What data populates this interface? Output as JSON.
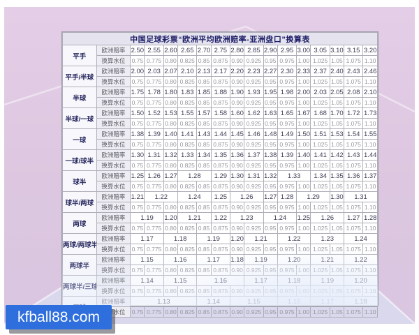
{
  "chart_data": {
    "type": "table",
    "title": "中国足球彩票“欧洲平均欧洲赔率-亚洲盘口”换算表",
    "row_label_odds": "欧洲赔率",
    "row_label_water": "换算水位",
    "water_values": [
      "0.75",
      "0.775",
      "0.80",
      "0.825",
      "0.85",
      "0.875",
      "0.90",
      "0.925",
      "0.95",
      "0.975",
      "1.00",
      "1.025",
      "1.05",
      "1.075",
      "1.10"
    ],
    "groups": [
      {
        "handicap": "平手",
        "odds": [
          [
            "2.50",
            1
          ],
          [
            "2.55",
            1
          ],
          [
            "2.60",
            1
          ],
          [
            "2.65",
            1
          ],
          [
            "2.70",
            1
          ],
          [
            "2.75",
            1
          ],
          [
            "2.80",
            1
          ],
          [
            "2.85",
            1
          ],
          [
            "2.90",
            1
          ],
          [
            "2.95",
            1
          ],
          [
            "3.00",
            1
          ],
          [
            "3.05",
            1
          ],
          [
            "3.10",
            1
          ],
          [
            "3.15",
            1
          ],
          [
            "3.20",
            1
          ]
        ]
      },
      {
        "handicap": "平手/半球",
        "odds": [
          [
            "2.00",
            1
          ],
          [
            "2.03",
            1
          ],
          [
            "2.07",
            1
          ],
          [
            "2.10",
            1
          ],
          [
            "2.13",
            1
          ],
          [
            "2.17",
            1
          ],
          [
            "2.20",
            1
          ],
          [
            "2.23",
            1
          ],
          [
            "2.27",
            1
          ],
          [
            "2.30",
            1
          ],
          [
            "2.33",
            1
          ],
          [
            "2.37",
            1
          ],
          [
            "2.40",
            1
          ],
          [
            "2.43",
            1
          ],
          [
            "2.46",
            1
          ]
        ]
      },
      {
        "handicap": "半球",
        "odds": [
          [
            "1.75",
            1
          ],
          [
            "1.78",
            1
          ],
          [
            "1.80",
            1
          ],
          [
            "1.83",
            1
          ],
          [
            "1.85",
            1
          ],
          [
            "1.88",
            1
          ],
          [
            "1.90",
            1
          ],
          [
            "1.93",
            1
          ],
          [
            "1.95",
            1
          ],
          [
            "1.98",
            1
          ],
          [
            "2.00",
            1
          ],
          [
            "2.03",
            1
          ],
          [
            "2.05",
            1
          ],
          [
            "2.08",
            1
          ],
          [
            "2.10",
            1
          ]
        ]
      },
      {
        "handicap": "半球/一球",
        "odds": [
          [
            "1.50",
            1
          ],
          [
            "1.52",
            1
          ],
          [
            "1.53",
            1
          ],
          [
            "1.55",
            1
          ],
          [
            "1.57",
            1
          ],
          [
            "1.58",
            1
          ],
          [
            "1.60",
            1
          ],
          [
            "1.62",
            1
          ],
          [
            "1.63",
            1
          ],
          [
            "1.65",
            1
          ],
          [
            "1.67",
            1
          ],
          [
            "1.68",
            1
          ],
          [
            "1.70",
            1
          ],
          [
            "1.72",
            1
          ],
          [
            "1.73",
            1
          ]
        ]
      },
      {
        "handicap": "一球",
        "odds": [
          [
            "1.38",
            1
          ],
          [
            "1.39",
            1
          ],
          [
            "1.40",
            1
          ],
          [
            "1.41",
            1
          ],
          [
            "1.43",
            1
          ],
          [
            "1.44",
            1
          ],
          [
            "1.45",
            1
          ],
          [
            "1.46",
            1
          ],
          [
            "1.48",
            1
          ],
          [
            "1.49",
            1
          ],
          [
            "1.50",
            1
          ],
          [
            "1.51",
            1
          ],
          [
            "1.53",
            1
          ],
          [
            "1.54",
            1
          ],
          [
            "1.55",
            1
          ]
        ]
      },
      {
        "handicap": "一球/球半",
        "odds": [
          [
            "1.30",
            1
          ],
          [
            "1.31",
            1
          ],
          [
            "1.32",
            1
          ],
          [
            "1.33",
            1
          ],
          [
            "1.34",
            1
          ],
          [
            "1.35",
            1
          ],
          [
            "1.36",
            1
          ],
          [
            "1.37",
            1
          ],
          [
            "1.38",
            1
          ],
          [
            "1.39",
            1
          ],
          [
            "1.40",
            1
          ],
          [
            "1.41",
            1
          ],
          [
            "1.42",
            1
          ],
          [
            "1.43",
            1
          ],
          [
            "1.44",
            1
          ]
        ]
      },
      {
        "handicap": "球半",
        "odds": [
          [
            "1.25",
            1
          ],
          [
            "1.26",
            1
          ],
          [
            "1.27",
            1
          ],
          [
            "1.28",
            2
          ],
          [
            "1.29",
            1
          ],
          [
            "1.30",
            1
          ],
          [
            "1.31",
            1
          ],
          [
            "1.32",
            1
          ],
          [
            "1.33",
            2
          ],
          [
            "1.34",
            1
          ],
          [
            "1.35",
            1
          ],
          [
            "1.36",
            1
          ],
          [
            "1.37",
            1
          ]
        ]
      },
      {
        "handicap": "球半/两球",
        "odds": [
          [
            "1.21",
            1
          ],
          [
            "1.22",
            2
          ],
          [
            "1.24",
            2
          ],
          [
            "1.25",
            1
          ],
          [
            "1.26",
            2
          ],
          [
            "1.27",
            1
          ],
          [
            "1.28",
            1
          ],
          [
            "1.29",
            2
          ],
          [
            "1.30",
            1
          ],
          [
            "1.31",
            2
          ]
        ]
      },
      {
        "handicap": "两球",
        "odds": [
          [
            "1.19",
            2
          ],
          [
            "1.20",
            1
          ],
          [
            "1.21",
            2
          ],
          [
            "1.22",
            1
          ],
          [
            "1.23",
            2
          ],
          [
            "1.24",
            2
          ],
          [
            "1.25",
            1
          ],
          [
            "1.26",
            2
          ],
          [
            "1.27",
            1
          ],
          [
            "1.28",
            1
          ]
        ]
      },
      {
        "handicap": "两球/两球半",
        "odds": [
          [
            "1.17",
            2
          ],
          [
            "1.18",
            2
          ],
          [
            "1.19",
            2
          ],
          [
            "1.20",
            1
          ],
          [
            "1.21",
            2
          ],
          [
            "1.22",
            2
          ],
          [
            "1.23",
            2
          ],
          [
            "1.24",
            2
          ]
        ]
      },
      {
        "handicap": "两球半",
        "odds": [
          [
            "1.15",
            2
          ],
          [
            "1.16",
            2
          ],
          [
            "1.17",
            2
          ],
          [
            "1.18",
            1
          ],
          [
            "1.19",
            2
          ],
          [
            "1.20",
            2
          ],
          [
            "1.21",
            2
          ],
          [
            "1.22",
            2
          ]
        ]
      },
      {
        "handicap": "两球半/三球",
        "odds": [
          [
            "1.14",
            2
          ],
          [
            "1.15",
            2
          ],
          [
            "1.16",
            3
          ],
          [
            "1.17",
            2
          ],
          [
            "1.18",
            2
          ],
          [
            "1.19",
            2
          ],
          [
            "1.20",
            2
          ]
        ]
      },
      {
        "handicap": "三球",
        "odds": [
          [
            "1.13",
            4
          ],
          [
            "1.14",
            2
          ],
          [
            "1.15",
            3
          ],
          [
            "1.16",
            2
          ],
          [
            "1.17",
            2
          ],
          [
            "1.18",
            2
          ]
        ]
      }
    ]
  },
  "watermark": {
    "text": "kfball88.com"
  },
  "colors": {
    "watermark_bg": "#2e6fdd",
    "envelope_pink": "#ddc7e0",
    "bottom_flap_blue": "#d9e2f3",
    "title_text": "#1b1b66",
    "header_bg": "#e4e3ee",
    "sublabel_bg": "#ededf3",
    "odds_text": "#3c3c55",
    "water_text": "#96969e",
    "border": "#aeaeb9"
  }
}
